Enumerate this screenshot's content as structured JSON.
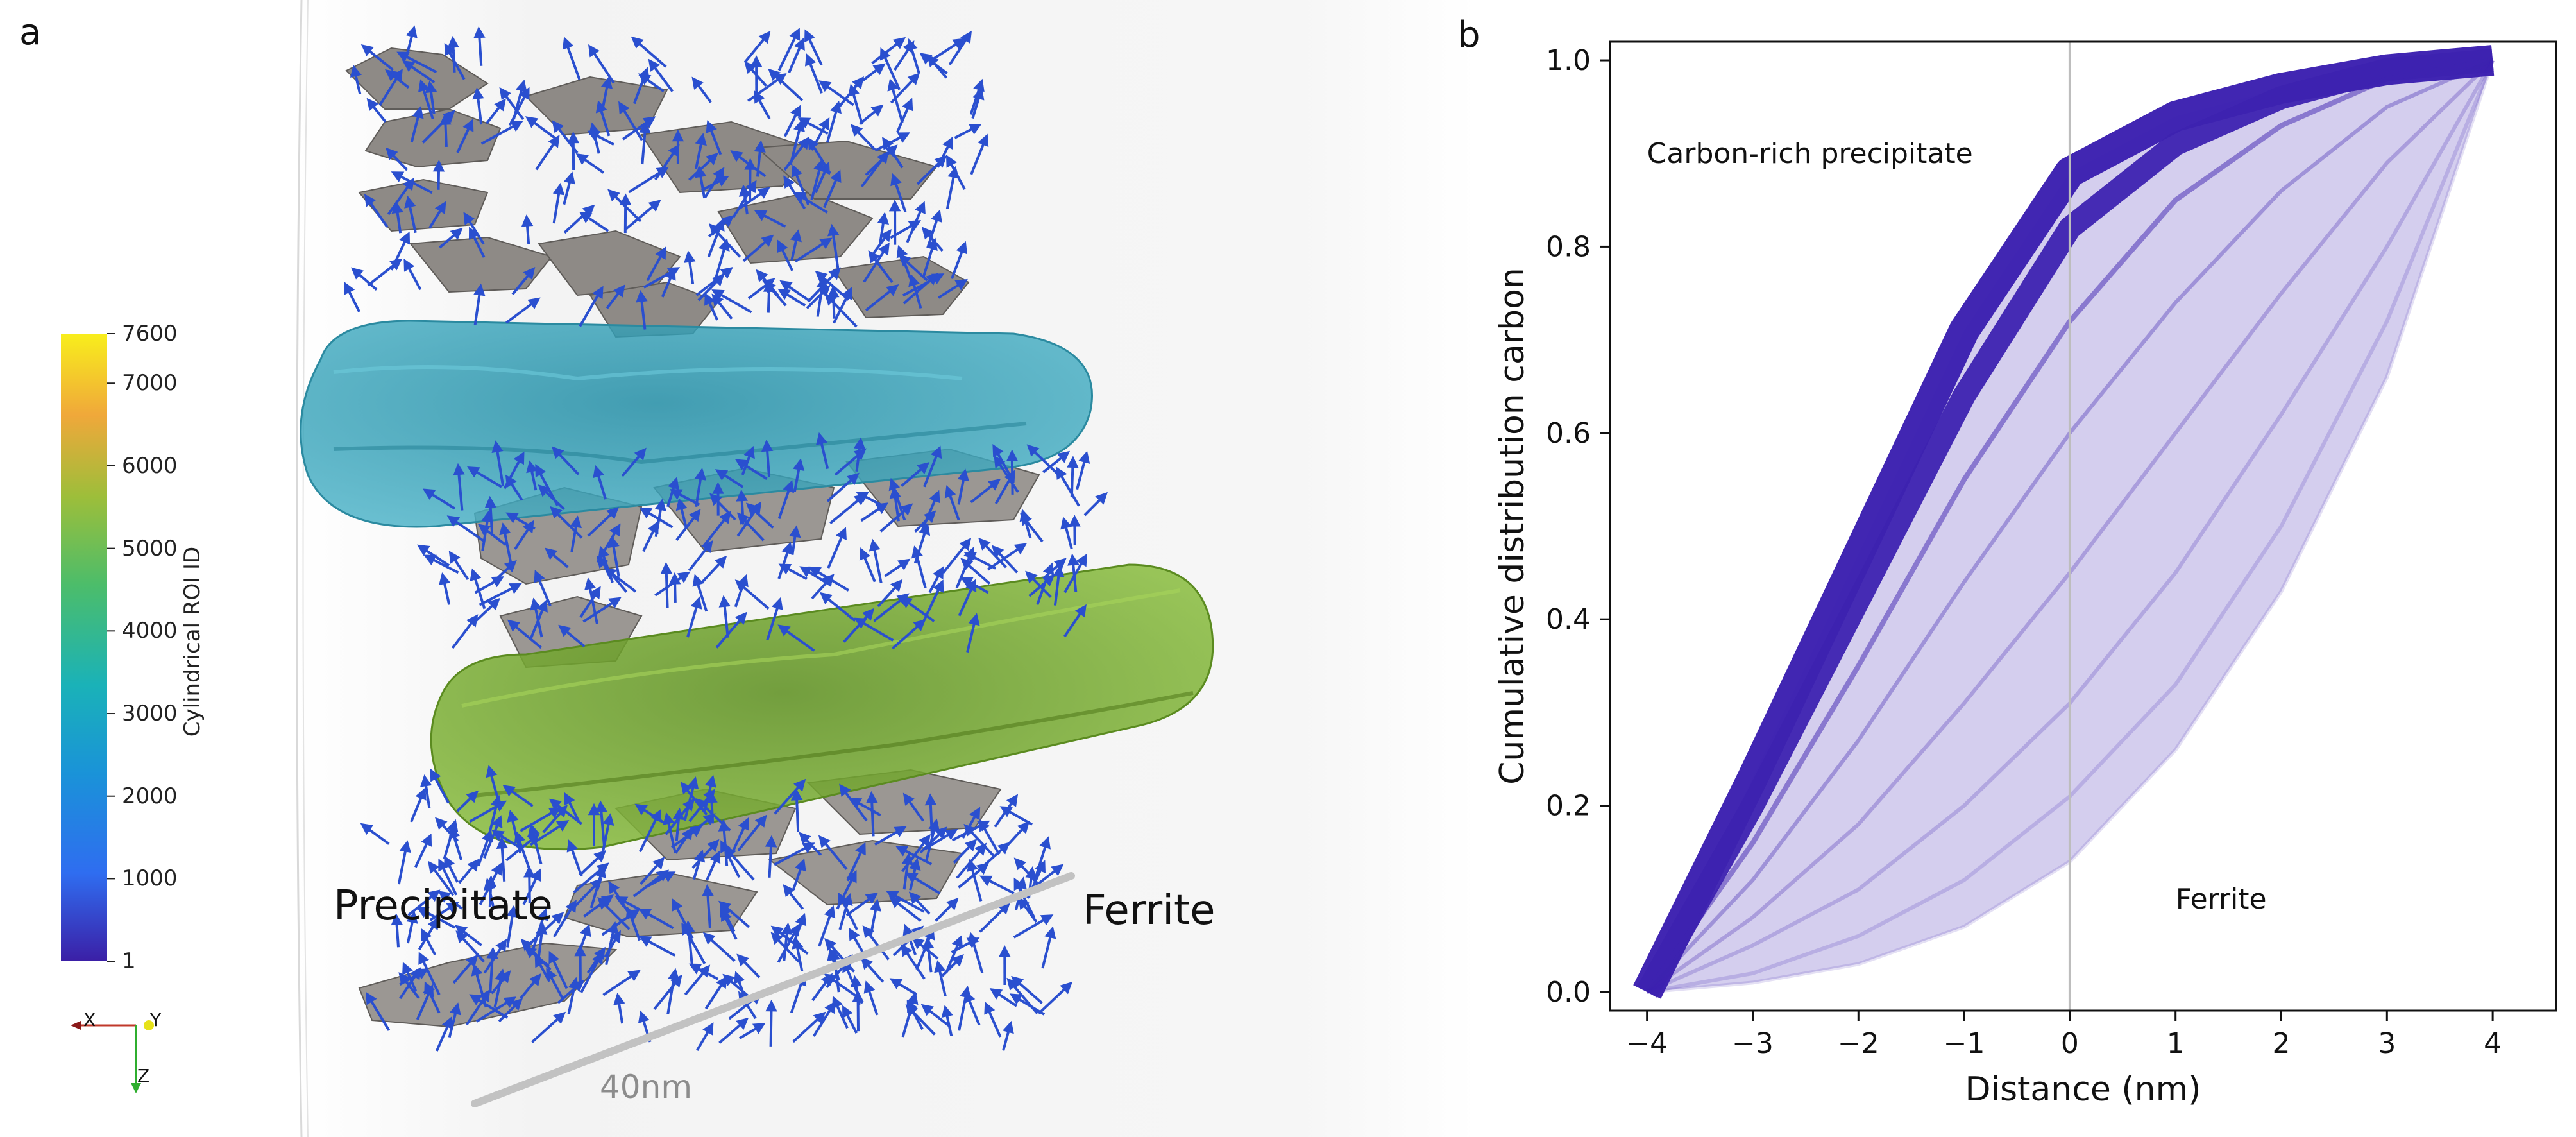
{
  "panel_a": {
    "letter": "a",
    "labels": {
      "precipitate": "Precipitate",
      "ferrite": "Ferrite",
      "scale": "40nm"
    },
    "colorbar": {
      "title": "Cylindrical ROI ID",
      "ticks": [
        "7600",
        "7000",
        "6000",
        "5000",
        "4000",
        "3000",
        "2000",
        "1000",
        "1"
      ],
      "tick_values": [
        7600,
        7000,
        6000,
        5000,
        4000,
        3000,
        2000,
        1000,
        1
      ],
      "range": [
        1,
        7600
      ],
      "colors": [
        "#3b1fa6",
        "#2f6df0",
        "#1aa6c8",
        "#2cb6a0",
        "#6cc04a",
        "#b5c238",
        "#f2a83a",
        "#f7e01c"
      ]
    },
    "axes_gizmo": {
      "x": "X",
      "y": "Y",
      "z": "Z"
    },
    "colors": {
      "cylinder_upper": "#2a9db5",
      "cylinder_lower": "#6fa828",
      "mesh": "#8e8a86",
      "normals": "#2a4fcf"
    }
  },
  "panel_b": {
    "letter": "b"
  },
  "chart_data": {
    "type": "line",
    "xlabel": "Distance (nm)",
    "ylabel": "Cumulative distribution carbon",
    "xlim": [
      -4.35,
      4.6
    ],
    "ylim": [
      -0.02,
      1.02
    ],
    "xticks": [
      -4,
      -3,
      -2,
      -1,
      0,
      1,
      2,
      3,
      4
    ],
    "xtick_labels": [
      "−4",
      "−3",
      "−2",
      "−1",
      "0",
      "1",
      "2",
      "3",
      "4"
    ],
    "yticks": [
      0.0,
      0.2,
      0.4,
      0.6,
      0.8,
      1.0
    ],
    "ytick_labels": [
      "0.0",
      "0.2",
      "0.4",
      "0.6",
      "0.8",
      "1.0"
    ],
    "grid": false,
    "vline_x": 0,
    "color": "#3d22b0",
    "annotations": [
      {
        "text": "Carbon-rich precipitate",
        "x": -4.0,
        "y": 0.9
      },
      {
        "text": "Ferrite",
        "x": 1.0,
        "y": 0.1
      }
    ],
    "series": [
      {
        "x": [
          -4,
          -3,
          -2,
          -1,
          0,
          1,
          2,
          3,
          4
        ],
        "y": [
          0.0,
          0.23,
          0.47,
          0.71,
          0.88,
          0.94,
          0.97,
          0.99,
          1.0
        ]
      },
      {
        "x": [
          -4,
          -3,
          -2,
          -1,
          0,
          1,
          2,
          3,
          4
        ],
        "y": [
          0.0,
          0.2,
          0.42,
          0.64,
          0.82,
          0.91,
          0.96,
          0.99,
          1.0
        ]
      },
      {
        "x": [
          -4,
          -3,
          -2,
          -1,
          0,
          1,
          2,
          3,
          4
        ],
        "y": [
          0.0,
          0.16,
          0.35,
          0.55,
          0.72,
          0.85,
          0.93,
          0.98,
          1.0
        ]
      },
      {
        "x": [
          -4,
          -3,
          -2,
          -1,
          0,
          1,
          2,
          3,
          4
        ],
        "y": [
          0.0,
          0.12,
          0.27,
          0.44,
          0.6,
          0.74,
          0.86,
          0.95,
          1.0
        ]
      },
      {
        "x": [
          -4,
          -3,
          -2,
          -1,
          0,
          1,
          2,
          3,
          4
        ],
        "y": [
          0.0,
          0.08,
          0.18,
          0.31,
          0.45,
          0.6,
          0.75,
          0.89,
          1.0
        ]
      },
      {
        "x": [
          -4,
          -3,
          -2,
          -1,
          0,
          1,
          2,
          3,
          4
        ],
        "y": [
          0.0,
          0.05,
          0.11,
          0.2,
          0.31,
          0.45,
          0.62,
          0.8,
          1.0
        ]
      },
      {
        "x": [
          -4,
          -3,
          -2,
          -1,
          0,
          1,
          2,
          3,
          4
        ],
        "y": [
          0.0,
          0.02,
          0.06,
          0.12,
          0.21,
          0.33,
          0.5,
          0.72,
          1.0
        ]
      },
      {
        "x": [
          -4,
          -3,
          -2,
          -1,
          0,
          1,
          2,
          3,
          4
        ],
        "y": [
          0.0,
          0.01,
          0.03,
          0.07,
          0.14,
          0.26,
          0.43,
          0.66,
          1.0
        ]
      }
    ]
  }
}
